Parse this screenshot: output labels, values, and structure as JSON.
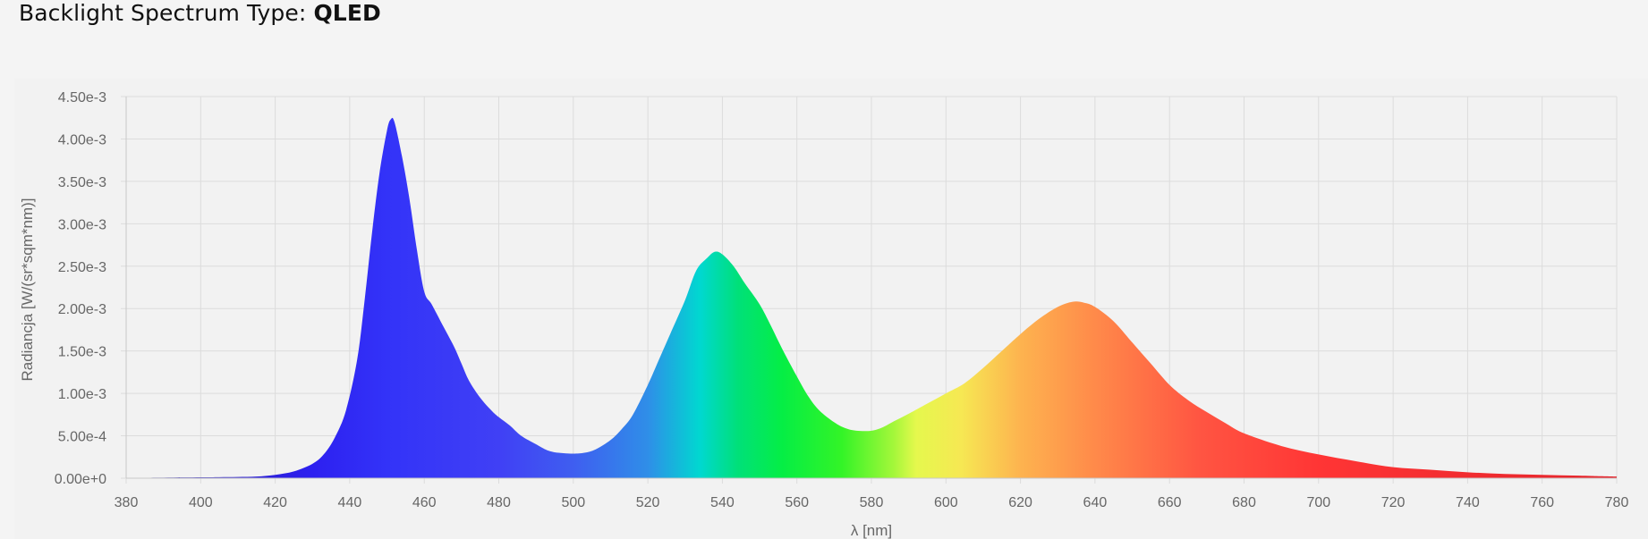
{
  "header": {
    "title_prefix": "Backlight Spectrum Type: ",
    "title_value": "QLED"
  },
  "chart_data": {
    "type": "area",
    "xlabel": "λ [nm]",
    "ylabel": "Radiancja [W/(sr*sqm*nm)]",
    "xlim": [
      380,
      780
    ],
    "ylim": [
      0,
      0.0045
    ],
    "x_ticks": [
      "380",
      "400",
      "420",
      "440",
      "460",
      "480",
      "500",
      "520",
      "540",
      "560",
      "580",
      "600",
      "620",
      "640",
      "660",
      "680",
      "700",
      "720",
      "740",
      "760",
      "780"
    ],
    "y_ticks": [
      "0.00e+0",
      "5.00e-4",
      "1.00e-3",
      "1.50e-3",
      "2.00e-3",
      "2.50e-3",
      "3.00e-3",
      "3.50e-3",
      "4.00e-3",
      "4.50e-3"
    ],
    "grid": true,
    "fill": "wavelength-color gradient",
    "series": [
      {
        "x": [
          380,
          390,
          400,
          405,
          410,
          415,
          420,
          425,
          430,
          433,
          436,
          439,
          442,
          444,
          446,
          448,
          450,
          451,
          452,
          454,
          456,
          458,
          460,
          462,
          465,
          468,
          470,
          472,
          475,
          478,
          480,
          483,
          486,
          490,
          493,
          496,
          500,
          503,
          506,
          510,
          513,
          516,
          520,
          523,
          526,
          530,
          533,
          536,
          538,
          540,
          543,
          546,
          550,
          553,
          556,
          560,
          563,
          566,
          570,
          573,
          576,
          580,
          583,
          586,
          590,
          595,
          600,
          605,
          610,
          615,
          620,
          625,
          630,
          634,
          637,
          640,
          645,
          650,
          655,
          660,
          665,
          670,
          675,
          680,
          690,
          700,
          710,
          720,
          730,
          740,
          750,
          760,
          770,
          780
        ],
        "y": [
          5e-06,
          7e-06,
          1e-05,
          1.2e-05,
          1.5e-05,
          2e-05,
          4e-05,
          8e-05,
          0.00017,
          0.00028,
          0.00048,
          0.0008,
          0.0014,
          0.0021,
          0.0029,
          0.0036,
          0.0041,
          0.00423,
          0.0042,
          0.0038,
          0.0033,
          0.0027,
          0.0022,
          0.00205,
          0.0018,
          0.00155,
          0.00135,
          0.00115,
          0.00095,
          0.0008,
          0.00072,
          0.00062,
          0.0005,
          0.0004,
          0.00033,
          0.0003,
          0.00029,
          0.0003,
          0.00034,
          0.00045,
          0.00058,
          0.00075,
          0.0011,
          0.0014,
          0.0017,
          0.0021,
          0.00245,
          0.0026,
          0.00267,
          0.00264,
          0.0025,
          0.0023,
          0.00205,
          0.0018,
          0.00153,
          0.0012,
          0.00097,
          0.0008,
          0.00066,
          0.00059,
          0.00056,
          0.00056,
          0.0006,
          0.00067,
          0.00076,
          0.00088,
          0.001,
          0.00112,
          0.0013,
          0.0015,
          0.0017,
          0.00188,
          0.00202,
          0.00208,
          0.00207,
          0.00202,
          0.00185,
          0.0016,
          0.00135,
          0.0011,
          0.00092,
          0.00078,
          0.00065,
          0.00053,
          0.00038,
          0.00028,
          0.0002,
          0.00013,
          0.0001,
          7e-05,
          5e-05,
          4e-05,
          3e-05,
          2e-05
        ]
      }
    ]
  }
}
